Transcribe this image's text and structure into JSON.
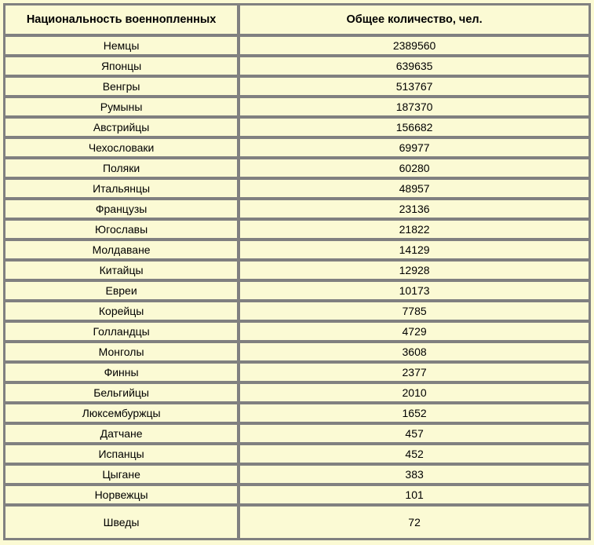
{
  "table": {
    "type": "table",
    "background_color": "#fbfad4",
    "border_color": "#808080",
    "text_color": "#000000",
    "header_fontsize": 14.5,
    "cell_fontsize": 14,
    "columns": [
      {
        "key": "nationality",
        "label": "Национальность военнопленных",
        "width_pct": 40
      },
      {
        "key": "count",
        "label": "Общее количество, чел.",
        "width_pct": 60
      }
    ],
    "rows": [
      {
        "nationality": "Немцы",
        "count": "2389560"
      },
      {
        "nationality": "Японцы",
        "count": "639635"
      },
      {
        "nationality": "Венгры",
        "count": "513767"
      },
      {
        "nationality": "Румыны",
        "count": "187370"
      },
      {
        "nationality": "Австрийцы",
        "count": "156682"
      },
      {
        "nationality": "Чехословаки",
        "count": "69977"
      },
      {
        "nationality": "Поляки",
        "count": "60280"
      },
      {
        "nationality": "Итальянцы",
        "count": "48957"
      },
      {
        "nationality": "Французы",
        "count": "23136"
      },
      {
        "nationality": "Югославы",
        "count": "21822"
      },
      {
        "nationality": "Молдаване",
        "count": "14129"
      },
      {
        "nationality": "Китайцы",
        "count": "12928"
      },
      {
        "nationality": "Евреи",
        "count": "10173"
      },
      {
        "nationality": "Корейцы",
        "count": "7785"
      },
      {
        "nationality": "Голландцы",
        "count": "4729"
      },
      {
        "nationality": "Монголы",
        "count": "3608"
      },
      {
        "nationality": "Финны",
        "count": "2377"
      },
      {
        "nationality": "Бельгийцы",
        "count": "2010"
      },
      {
        "nationality": "Люксембуржцы",
        "count": "1652"
      },
      {
        "nationality": "Датчане",
        "count": "457"
      },
      {
        "nationality": "Испанцы",
        "count": "452"
      },
      {
        "nationality": "Цыгане",
        "count": "383"
      },
      {
        "nationality": "Норвежцы",
        "count": "101"
      },
      {
        "nationality": "Шведы",
        "count": "72",
        "tall": true
      }
    ]
  }
}
